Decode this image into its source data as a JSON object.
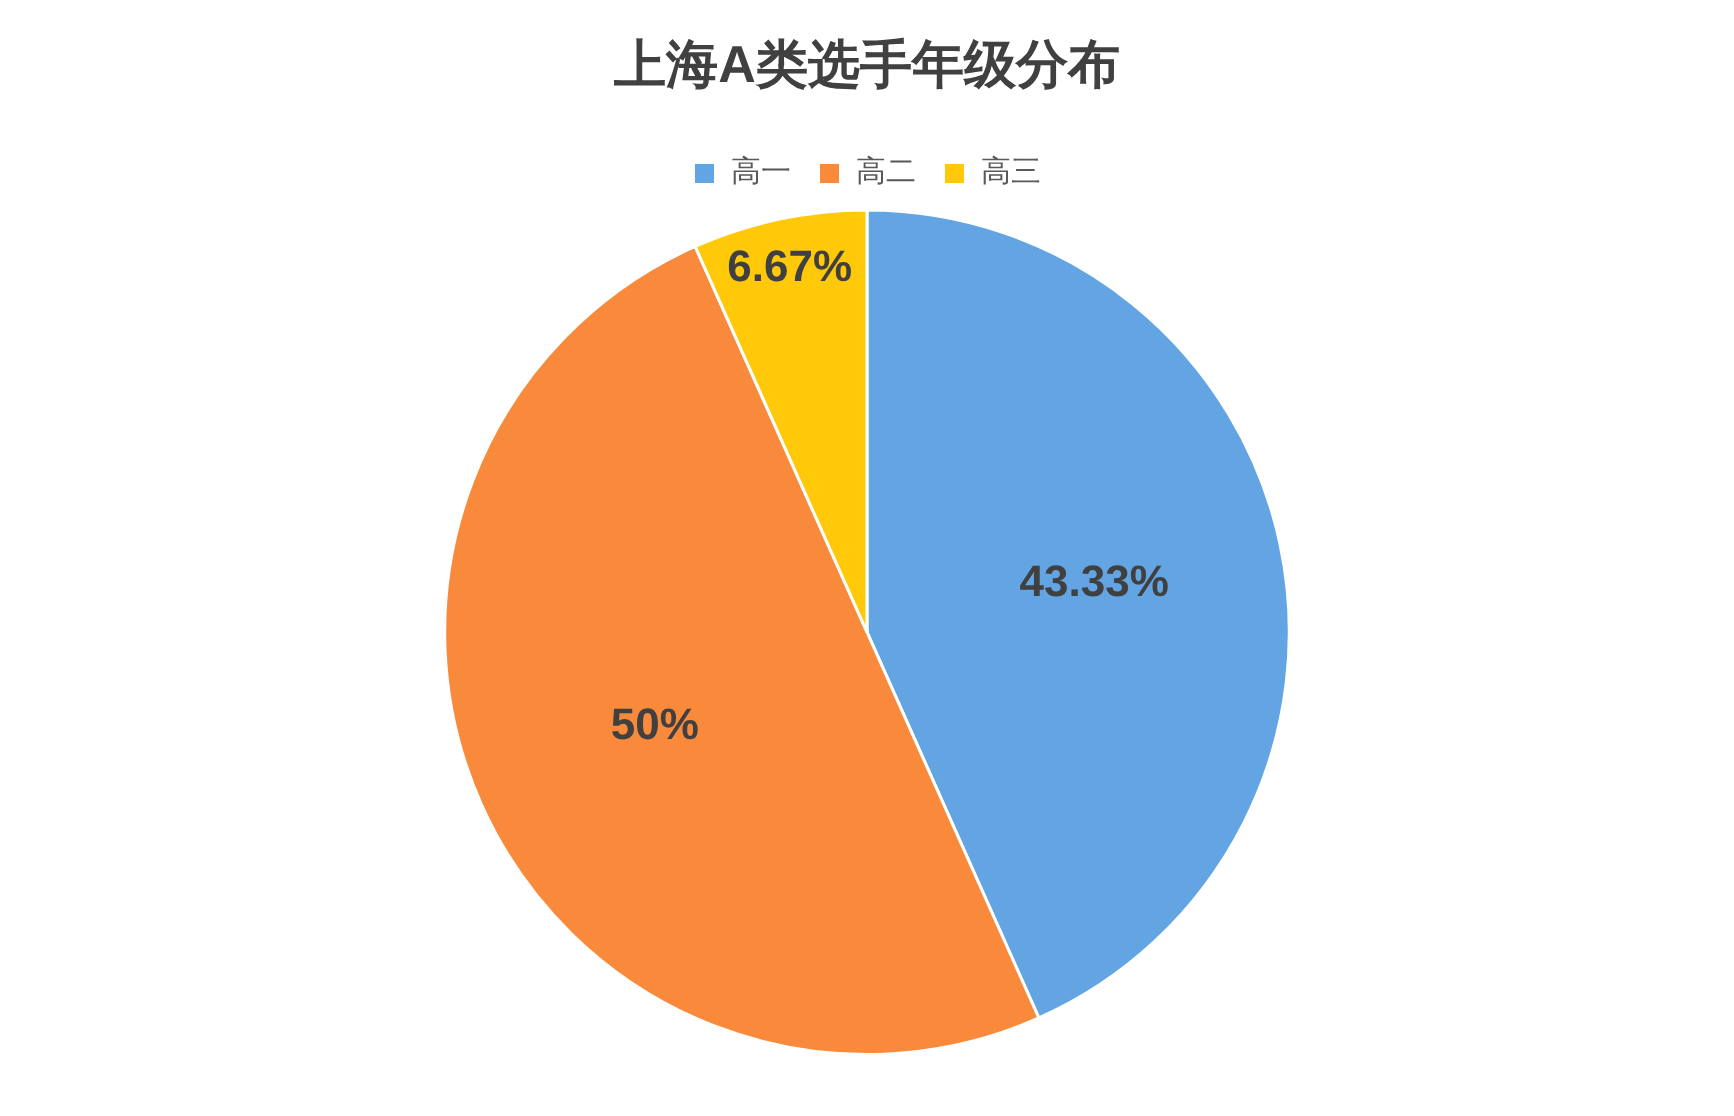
{
  "chart_data": {
    "type": "pie",
    "title": "上海A类选手年级分布",
    "categories": [
      "高一",
      "高二",
      "高三"
    ],
    "values": [
      43.33,
      50,
      6.67
    ],
    "value_labels": [
      "43.33%",
      "50%",
      "6.67%"
    ],
    "colors": [
      "#62a5e2",
      "#f98a3b",
      "#ffc90a"
    ],
    "legend": "top"
  }
}
